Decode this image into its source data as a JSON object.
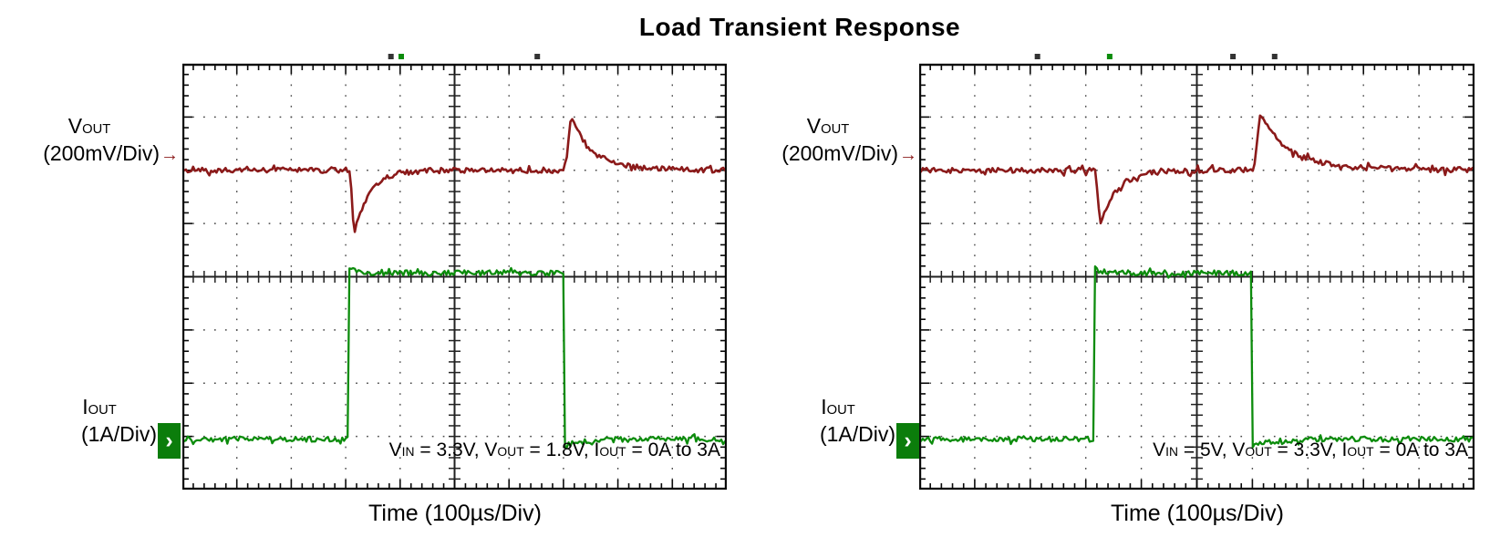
{
  "title": "Load Transient Response",
  "colors": {
    "vout_trace": "#8b1a1a",
    "iout_trace": "#0c8c0c",
    "iout_marker_bg": "#0b7d0b",
    "grid_dots": "#4a4a4a",
    "frame": "#0a0a0a",
    "text": "#000000"
  },
  "panels": [
    {
      "id": "left",
      "vout_label": [
        {
          "t": "V"
        },
        {
          "sub": "OUT"
        }
      ],
      "vout_scale_label": [
        {
          "t": "(200mV/Div)"
        }
      ],
      "vout_arrow": "→",
      "iout_label": [
        {
          "t": "I"
        },
        {
          "sub": "OUT"
        }
      ],
      "iout_scale_label": [
        {
          "t": "(1A/Div)"
        }
      ],
      "iout_marker_glyph": "›",
      "annotation": [
        {
          "t": "V"
        },
        {
          "sub": "IN"
        },
        {
          "t": " = 3.3V, V"
        },
        {
          "sub": "OUT"
        },
        {
          "t": " = 1.8V, I"
        },
        {
          "sub": "OUT"
        },
        {
          "t": " = 0A to 3A"
        }
      ],
      "xlabel": "Time (100µs/Div)"
    },
    {
      "id": "right",
      "vout_label": [
        {
          "t": "V"
        },
        {
          "sub": "OUT"
        }
      ],
      "vout_scale_label": [
        {
          "t": "(200mV/Div)"
        }
      ],
      "vout_arrow": "→",
      "iout_label": [
        {
          "t": "I"
        },
        {
          "sub": "OUT"
        }
      ],
      "iout_scale_label": [
        {
          "t": "(1A/Div)"
        }
      ],
      "iout_marker_glyph": "›",
      "annotation": [
        {
          "t": "V"
        },
        {
          "sub": "IN"
        },
        {
          "t": " = 5V, V"
        },
        {
          "sub": "OUT"
        },
        {
          "t": " = 3.3V, I"
        },
        {
          "sub": "OUT"
        },
        {
          "t": " = 0A to 3A"
        }
      ],
      "xlabel": "Time (100µs/Div)"
    }
  ],
  "chart_data": [
    {
      "type": "line",
      "panel": "left",
      "title": "Load Transient Response",
      "xlabel": "Time (100µs/Div)",
      "time_per_div": "100µs",
      "x_divisions": 10,
      "y_divisions": 8,
      "grid": "dotted graticule with ticked center crosshair",
      "conditions": "VIN = 3.3V, VOUT = 1.8V, IOUT = 0A to 3A",
      "series": [
        {
          "name": "VOUT",
          "units_per_div": "200mV",
          "color": "#8b1a1a",
          "baseline_div": 2.0,
          "noise_div": 0.05,
          "undershoot": {
            "x_div": 3.05,
            "depth_div": 1.22,
            "recovery_tau_div": 0.28
          },
          "overshoot": {
            "x_div": 7.0,
            "height_div": 1.05,
            "decay_tau_div": 0.33
          }
        },
        {
          "name": "IOUT",
          "units_per_div": "1A",
          "color": "#0c8c0c",
          "low_value": "0A",
          "high_value": "3A",
          "noise_div": 0.05,
          "low_div": 7.05,
          "high_div": 3.93,
          "step_up_x_div": 3.05,
          "step_down_x_div": 7.0
        }
      ],
      "trigger_marks": [
        {
          "x_frac": 0.383,
          "color": "dark"
        },
        {
          "x_frac": 0.402,
          "color": "green"
        },
        {
          "x_frac": 0.652,
          "color": "dark"
        }
      ]
    },
    {
      "type": "line",
      "panel": "right",
      "title": "Load Transient Response",
      "xlabel": "Time (100µs/Div)",
      "time_per_div": "100µs",
      "x_divisions": 10,
      "y_divisions": 8,
      "grid": "dotted graticule with ticked center crosshair",
      "conditions": "VIN = 5V, VOUT = 3.3V, IOUT = 0A to 3A",
      "series": [
        {
          "name": "VOUT",
          "units_per_div": "200mV",
          "color": "#8b1a1a",
          "baseline_div": 2.0,
          "noise_div": 0.05,
          "undershoot": {
            "x_div": 3.15,
            "depth_div": 1.05,
            "recovery_tau_div": 0.3
          },
          "overshoot": {
            "x_div": 6.0,
            "height_div": 1.1,
            "decay_tau_div": 0.45
          }
        },
        {
          "name": "IOUT",
          "units_per_div": "1A",
          "color": "#0c8c0c",
          "low_value": "0A",
          "high_value": "3A",
          "noise_div": 0.05,
          "low_div": 7.05,
          "high_div": 3.93,
          "step_up_x_div": 3.15,
          "step_down_x_div": 6.0
        }
      ],
      "trigger_marks": [
        {
          "x_frac": 0.213,
          "color": "dark"
        },
        {
          "x_frac": 0.343,
          "color": "green"
        },
        {
          "x_frac": 0.565,
          "color": "dark"
        },
        {
          "x_frac": 0.64,
          "color": "dark"
        }
      ]
    }
  ]
}
